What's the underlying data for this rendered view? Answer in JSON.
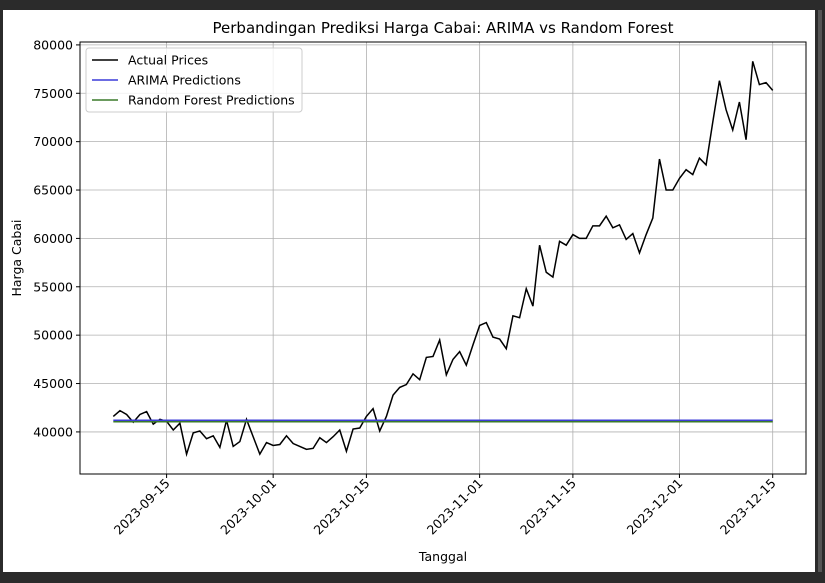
{
  "chart_data": {
    "type": "line",
    "title": "Perbandingan Prediksi Harga Cabai: ARIMA vs Random Forest",
    "xlabel": "Tanggal",
    "ylabel": "Harga Cabai",
    "x": [
      "2023-09-07",
      "2023-09-08",
      "2023-09-09",
      "2023-09-10",
      "2023-09-11",
      "2023-09-12",
      "2023-09-13",
      "2023-09-14",
      "2023-09-15",
      "2023-09-16",
      "2023-09-17",
      "2023-09-18",
      "2023-09-19",
      "2023-09-20",
      "2023-09-21",
      "2023-09-22",
      "2023-09-23",
      "2023-09-24",
      "2023-09-25",
      "2023-09-26",
      "2023-09-27",
      "2023-09-28",
      "2023-09-29",
      "2023-09-30",
      "2023-10-01",
      "2023-10-02",
      "2023-10-03",
      "2023-10-04",
      "2023-10-05",
      "2023-10-06",
      "2023-10-07",
      "2023-10-08",
      "2023-10-09",
      "2023-10-10",
      "2023-10-11",
      "2023-10-12",
      "2023-10-13",
      "2023-10-14",
      "2023-10-15",
      "2023-10-16",
      "2023-10-17",
      "2023-10-18",
      "2023-10-19",
      "2023-10-20",
      "2023-10-21",
      "2023-10-22",
      "2023-10-23",
      "2023-10-24",
      "2023-10-25",
      "2023-10-26",
      "2023-10-27",
      "2023-10-28",
      "2023-10-29",
      "2023-10-30",
      "2023-10-31",
      "2023-11-01",
      "2023-11-02",
      "2023-11-03",
      "2023-11-04",
      "2023-11-05",
      "2023-11-06",
      "2023-11-07",
      "2023-11-08",
      "2023-11-09",
      "2023-11-10",
      "2023-11-11",
      "2023-11-12",
      "2023-11-13",
      "2023-11-14",
      "2023-11-15",
      "2023-11-16",
      "2023-11-17",
      "2023-11-18",
      "2023-11-19",
      "2023-11-20",
      "2023-11-21",
      "2023-11-22",
      "2023-11-23",
      "2023-11-24",
      "2023-11-25",
      "2023-11-26",
      "2023-11-27",
      "2023-11-28",
      "2023-11-29",
      "2023-11-30",
      "2023-12-01",
      "2023-12-02",
      "2023-12-03",
      "2023-12-04",
      "2023-12-05",
      "2023-12-06",
      "2023-12-07",
      "2023-12-08",
      "2023-12-09",
      "2023-12-10",
      "2023-12-11",
      "2023-12-12",
      "2023-12-13",
      "2023-12-14",
      "2023-12-15"
    ],
    "series": [
      {
        "name": "Actual Prices",
        "color": "#000000",
        "values": [
          41600,
          42200,
          41800,
          41000,
          41800,
          42100,
          40800,
          41300,
          41100,
          40200,
          40900,
          37700,
          39900,
          40100,
          39300,
          39600,
          38400,
          41200,
          38500,
          39000,
          41300,
          39500,
          37700,
          38900,
          38600,
          38700,
          39600,
          38800,
          38500,
          38200,
          38300,
          39400,
          38900,
          39500,
          40200,
          38000,
          40300,
          40400,
          41600,
          42400,
          40100,
          41600,
          43800,
          44600,
          44900,
          46000,
          45400,
          47700,
          47800,
          49500,
          45900,
          47500,
          48300,
          46900,
          49000,
          51000,
          51300,
          49800,
          49600,
          48600,
          52000,
          51800,
          54800,
          53000,
          59300,
          56500,
          56000,
          59700,
          59300,
          60400,
          60000,
          60000,
          61300,
          61300,
          62300,
          61100,
          61400,
          59900,
          60500,
          58500,
          60400,
          62100,
          68200,
          65000,
          65000,
          66200,
          67100,
          66600,
          68300,
          67600,
          72000,
          76300,
          73300,
          71200,
          74100,
          70200,
          78300,
          75900,
          76100,
          75300
        ]
      },
      {
        "name": "ARIMA Predictions",
        "color": "#3c3cd8",
        "values": [
          41200,
          41200,
          41200,
          41200,
          41200,
          41200,
          41200,
          41200,
          41200,
          41200,
          41200,
          41200,
          41200,
          41200,
          41200,
          41200,
          41200,
          41200,
          41200,
          41200,
          41200,
          41200,
          41200,
          41200,
          41200,
          41200,
          41200,
          41200,
          41200,
          41200,
          41200,
          41200,
          41200,
          41200,
          41200,
          41200,
          41200,
          41200,
          41200,
          41200,
          41200,
          41200,
          41200,
          41200,
          41200,
          41200,
          41200,
          41200,
          41200,
          41200,
          41200,
          41200,
          41200,
          41200,
          41200,
          41200,
          41200,
          41200,
          41200,
          41200,
          41200,
          41200,
          41200,
          41200,
          41200,
          41200,
          41200,
          41200,
          41200,
          41200,
          41200,
          41200,
          41200,
          41200,
          41200,
          41200,
          41200,
          41200,
          41200,
          41200,
          41200,
          41200,
          41200,
          41200,
          41200,
          41200,
          41200,
          41200,
          41200,
          41200,
          41200,
          41200,
          41200,
          41200,
          41200,
          41200,
          41200,
          41200,
          41200,
          41200
        ]
      },
      {
        "name": "Random Forest Predictions",
        "color": "#3a7a2a",
        "values": [
          41050,
          41050,
          41050,
          41050,
          41050,
          41050,
          41050,
          41050,
          41050,
          41050,
          41050,
          41050,
          41050,
          41050,
          41050,
          41050,
          41050,
          41050,
          41050,
          41050,
          41050,
          41050,
          41050,
          41050,
          41050,
          41050,
          41050,
          41050,
          41050,
          41050,
          41050,
          41050,
          41050,
          41050,
          41050,
          41050,
          41050,
          41050,
          41050,
          41050,
          41050,
          41050,
          41050,
          41050,
          41050,
          41050,
          41050,
          41050,
          41050,
          41050,
          41050,
          41050,
          41050,
          41050,
          41050,
          41050,
          41050,
          41050,
          41050,
          41050,
          41050,
          41050,
          41050,
          41050,
          41050,
          41050,
          41050,
          41050,
          41050,
          41050,
          41050,
          41050,
          41050,
          41050,
          41050,
          41050,
          41050,
          41050,
          41050,
          41050,
          41050,
          41050,
          41050,
          41050,
          41050,
          41050,
          41050,
          41050,
          41050,
          41050,
          41050,
          41050,
          41050,
          41050,
          41050,
          41050,
          41050,
          41050,
          41050,
          41050
        ]
      }
    ],
    "xlim": [
      "2023-09-02",
      "2023-12-20"
    ],
    "xticks": [
      "2023-09-15",
      "2023-10-01",
      "2023-10-15",
      "2023-11-01",
      "2023-11-15",
      "2023-12-01",
      "2023-12-15"
    ],
    "ylim": [
      35650,
      80300
    ],
    "yticks": [
      40000,
      45000,
      50000,
      55000,
      60000,
      65000,
      70000,
      75000,
      80000
    ],
    "grid": true,
    "legend": "upper-left"
  }
}
